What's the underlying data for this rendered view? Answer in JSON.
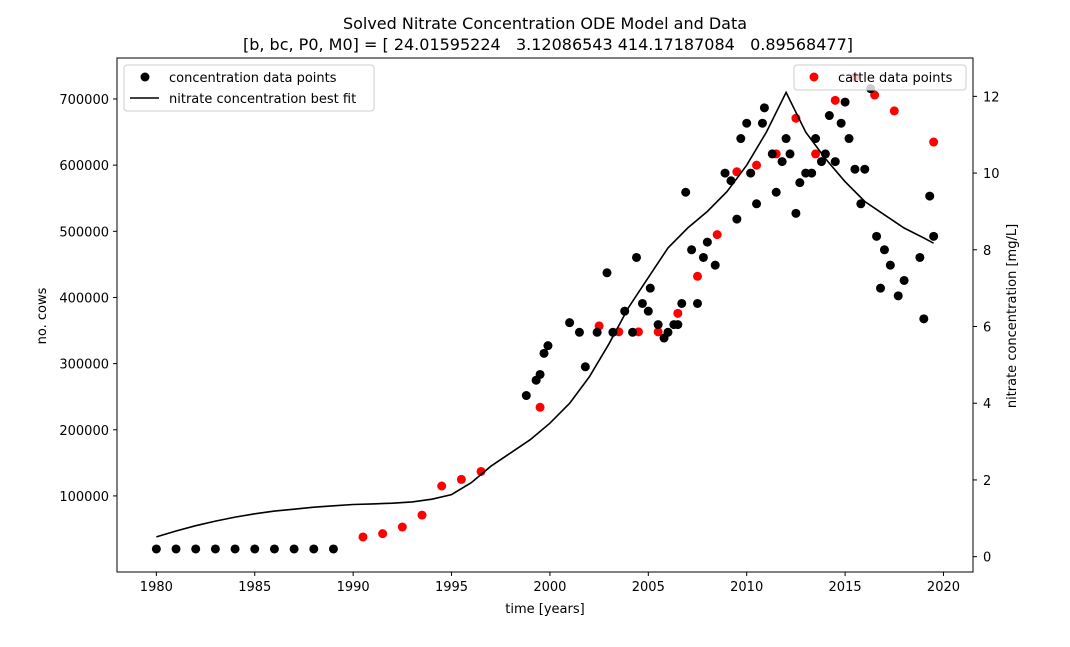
{
  "chart_data": {
    "type": "scatter",
    "title": "Solved Nitrate Concentration ODE Model and Data",
    "subtitle": "[b, bc, P0, M0] = [ 24.01595224   3.12086543 414.17187084   0.89568477]",
    "xlabel": "time [years]",
    "ylabel_left": "no. cows",
    "ylabel_right": "nitrate concentration [mg/L]",
    "xlim": [
      1978,
      2021.5
    ],
    "ylim_left": [
      -15000,
      762000
    ],
    "ylim_right": [
      -0.4,
      13.0
    ],
    "x_ticks": [
      1980,
      1985,
      1990,
      1995,
      2000,
      2005,
      2010,
      2015,
      2020
    ],
    "y_left_ticks": [
      100000,
      200000,
      300000,
      400000,
      500000,
      600000,
      700000
    ],
    "y_right_ticks": [
      0,
      2,
      4,
      6,
      8,
      10,
      12
    ],
    "grid": false,
    "legend_left": {
      "placement": "top-left",
      "entries": [
        "concentration data points",
        "nitrate concentration best fit"
      ]
    },
    "legend_right": {
      "placement": "top-right",
      "entries": [
        "cattle data points"
      ]
    },
    "colors": {
      "concentration": "#000000",
      "fit": "#000000",
      "cattle": "#ff0000"
    },
    "series": [
      {
        "name": "concentration data points",
        "axis": "right",
        "marker": "circle",
        "points": [
          [
            1980,
            0.2
          ],
          [
            1981,
            0.2
          ],
          [
            1982,
            0.2
          ],
          [
            1983,
            0.2
          ],
          [
            1984,
            0.2
          ],
          [
            1985,
            0.2
          ],
          [
            1986,
            0.2
          ],
          [
            1987,
            0.2
          ],
          [
            1988,
            0.2
          ],
          [
            1989,
            0.2
          ],
          [
            1998.8,
            4.2
          ],
          [
            1999.3,
            4.6
          ],
          [
            1999.5,
            4.75
          ],
          [
            1999.7,
            5.3
          ],
          [
            1999.9,
            5.5
          ],
          [
            2001,
            6.1
          ],
          [
            2001.5,
            5.85
          ],
          [
            2001.8,
            4.95
          ],
          [
            2002.4,
            5.85
          ],
          [
            2002.9,
            7.4
          ],
          [
            2003.2,
            5.85
          ],
          [
            2003.8,
            6.4
          ],
          [
            2004.2,
            5.85
          ],
          [
            2004.4,
            7.8
          ],
          [
            2004.7,
            6.6
          ],
          [
            2005,
            6.4
          ],
          [
            2005.1,
            7.0
          ],
          [
            2005.5,
            6.05
          ],
          [
            2005.8,
            5.7
          ],
          [
            2006,
            5.85
          ],
          [
            2006.3,
            6.05
          ],
          [
            2006.5,
            6.05
          ],
          [
            2006.7,
            6.6
          ],
          [
            2006.9,
            9.5
          ],
          [
            2007.2,
            8.0
          ],
          [
            2007.5,
            6.6
          ],
          [
            2007.8,
            7.8
          ],
          [
            2008,
            8.2
          ],
          [
            2008.4,
            7.6
          ],
          [
            2008.9,
            10.0
          ],
          [
            2009.2,
            9.8
          ],
          [
            2009.5,
            8.8
          ],
          [
            2009.7,
            10.9
          ],
          [
            2010,
            11.3
          ],
          [
            2010.2,
            10.0
          ],
          [
            2010.5,
            9.2
          ],
          [
            2010.8,
            11.3
          ],
          [
            2010.9,
            11.7
          ],
          [
            2011.3,
            10.5
          ],
          [
            2011.5,
            9.5
          ],
          [
            2011.8,
            10.3
          ],
          [
            2012,
            10.9
          ],
          [
            2012.2,
            10.5
          ],
          [
            2012.5,
            8.95
          ],
          [
            2012.7,
            9.75
          ],
          [
            2013,
            10.0
          ],
          [
            2013.3,
            10.0
          ],
          [
            2013.5,
            10.9
          ],
          [
            2013.8,
            10.3
          ],
          [
            2014,
            10.5
          ],
          [
            2014.2,
            11.5
          ],
          [
            2014.5,
            10.3
          ],
          [
            2014.8,
            11.3
          ],
          [
            2015,
            11.85
          ],
          [
            2015.2,
            10.9
          ],
          [
            2015.5,
            10.1
          ],
          [
            2015.8,
            9.2
          ],
          [
            2016,
            10.1
          ],
          [
            2016.3,
            12.2
          ],
          [
            2016.6,
            8.35
          ],
          [
            2016.8,
            7.0
          ],
          [
            2017,
            8.0
          ],
          [
            2017.3,
            7.6
          ],
          [
            2017.7,
            6.8
          ],
          [
            2018,
            7.2
          ],
          [
            2018.8,
            7.8
          ],
          [
            2019,
            6.2
          ],
          [
            2019.3,
            9.4
          ],
          [
            2019.5,
            8.35
          ]
        ]
      },
      {
        "name": "nitrate concentration best fit",
        "axis": "left",
        "marker": "line",
        "points": [
          [
            1980,
            38000
          ],
          [
            1981,
            47000
          ],
          [
            1982,
            55000
          ],
          [
            1983,
            62000
          ],
          [
            1984,
            68000
          ],
          [
            1985,
            73000
          ],
          [
            1986,
            77000
          ],
          [
            1987,
            80000
          ],
          [
            1988,
            83000
          ],
          [
            1989,
            85000
          ],
          [
            1990,
            87000
          ],
          [
            1991,
            88000
          ],
          [
            1992,
            89000
          ],
          [
            1993,
            91000
          ],
          [
            1994,
            95000
          ],
          [
            1995,
            102000
          ],
          [
            1996,
            120000
          ],
          [
            1997,
            145000
          ],
          [
            1998,
            165000
          ],
          [
            1999,
            185000
          ],
          [
            2000,
            210000
          ],
          [
            2001,
            240000
          ],
          [
            2002,
            280000
          ],
          [
            2003,
            330000
          ],
          [
            2004,
            385000
          ],
          [
            2005,
            430000
          ],
          [
            2006,
            475000
          ],
          [
            2007,
            505000
          ],
          [
            2008,
            530000
          ],
          [
            2009,
            560000
          ],
          [
            2010,
            600000
          ],
          [
            2011,
            650000
          ],
          [
            2012,
            710000
          ],
          [
            2013,
            650000
          ],
          [
            2014,
            610000
          ],
          [
            2015,
            575000
          ],
          [
            2016,
            545000
          ],
          [
            2017,
            525000
          ],
          [
            2018,
            505000
          ],
          [
            2019,
            490000
          ],
          [
            2019.5,
            482000
          ]
        ]
      },
      {
        "name": "cattle data points",
        "axis": "left",
        "marker": "circle",
        "points": [
          [
            1990.5,
            38000
          ],
          [
            1991.5,
            43000
          ],
          [
            1992.5,
            53000
          ],
          [
            1993.5,
            71000
          ],
          [
            1994.5,
            115000
          ],
          [
            1995.5,
            125000
          ],
          [
            1996.5,
            137000
          ],
          [
            1999.5,
            234000
          ],
          [
            2002.5,
            357000
          ],
          [
            2003.5,
            348000
          ],
          [
            2004.5,
            348000
          ],
          [
            2005.5,
            348000
          ],
          [
            2006.5,
            376000
          ],
          [
            2007.5,
            432000
          ],
          [
            2008.5,
            495000
          ],
          [
            2009.5,
            590000
          ],
          [
            2010.5,
            600000
          ],
          [
            2011.5,
            617000
          ],
          [
            2012.5,
            671000
          ],
          [
            2013.5,
            617000
          ],
          [
            2014.5,
            698000
          ],
          [
            2015.5,
            733000
          ],
          [
            2016.5,
            706000
          ],
          [
            2017.5,
            682000
          ],
          [
            2019.5,
            635000
          ]
        ]
      }
    ]
  }
}
